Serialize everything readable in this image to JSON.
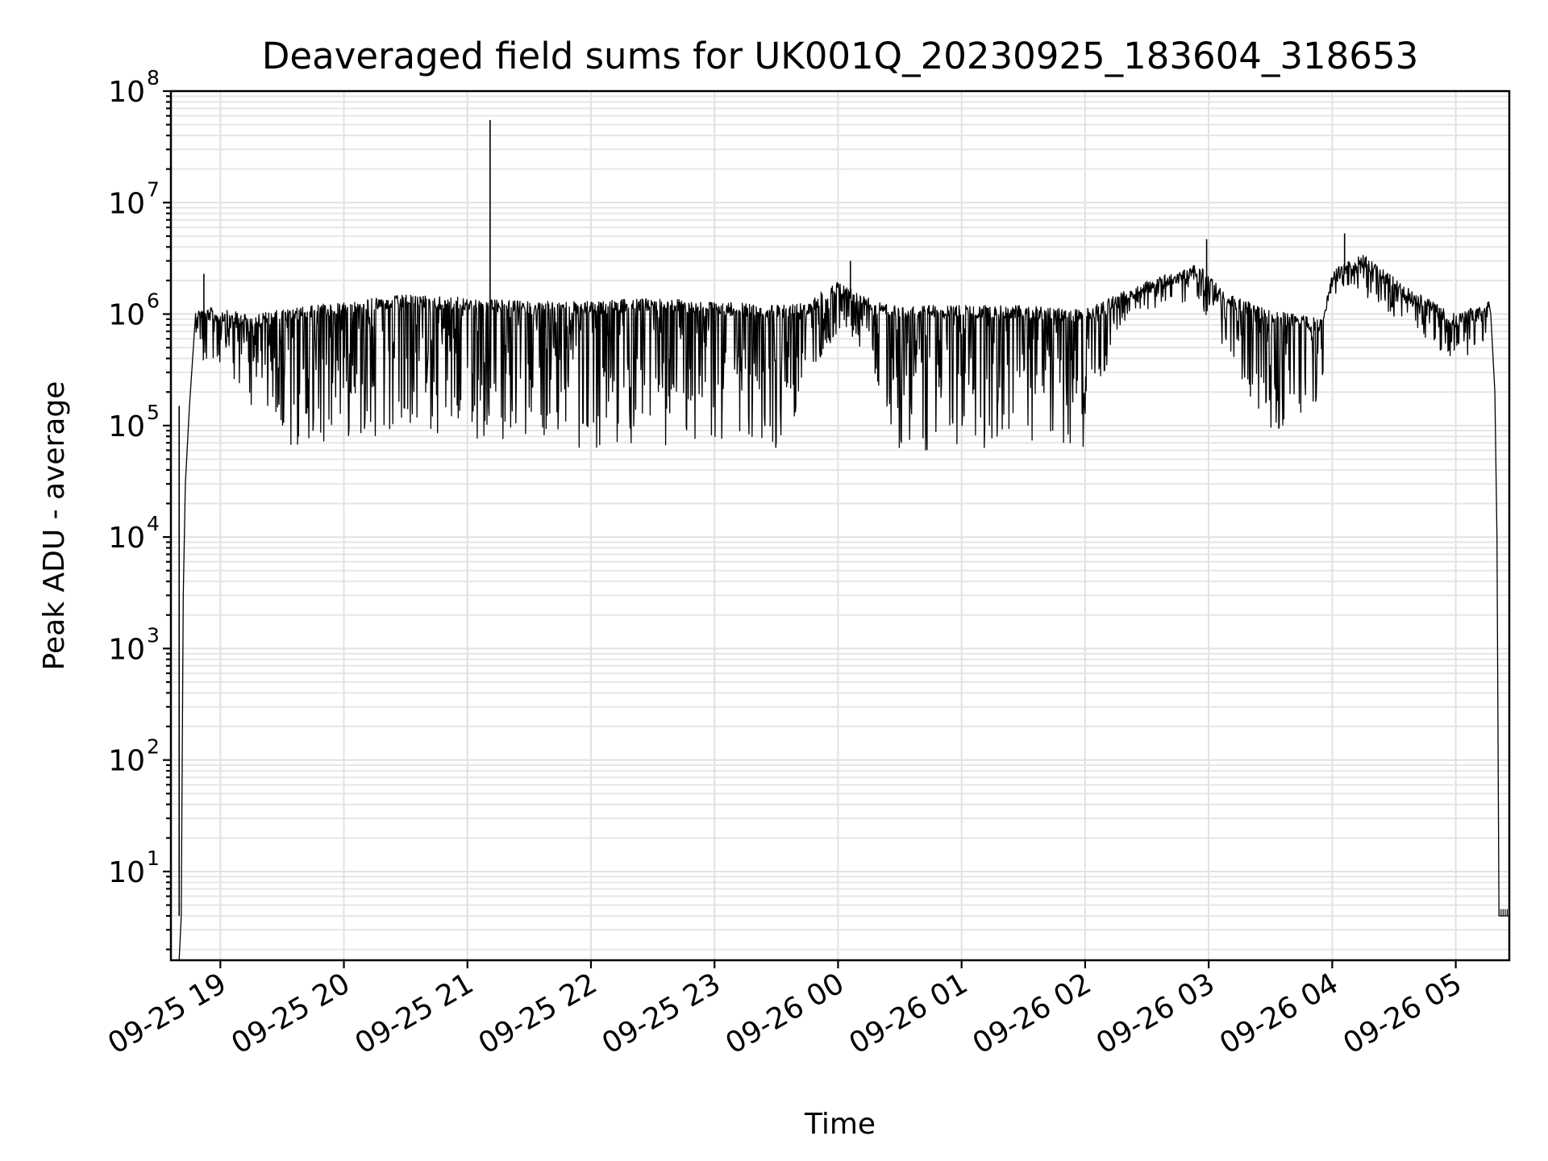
{
  "chart_data": {
    "type": "line",
    "title": "Deaveraged field sums for UK001Q_20230925_183604_318653",
    "xlabel": "Time",
    "ylabel": "Peak ADU - average",
    "yscale": "log",
    "ylim": [
      1.6,
      100000000
    ],
    "xlim": [
      "2023-09-25 18:36",
      "2023-09-26 05:26"
    ],
    "grid": "on (major and minor)",
    "legend": "none",
    "line_color": "#000000",
    "y_ticks": [
      {
        "value": 10,
        "base": "10",
        "exp": "1"
      },
      {
        "value": 100,
        "base": "10",
        "exp": "2"
      },
      {
        "value": 1000,
        "base": "10",
        "exp": "3"
      },
      {
        "value": 10000,
        "base": "10",
        "exp": "4"
      },
      {
        "value": 100000,
        "base": "10",
        "exp": "5"
      },
      {
        "value": 1000000,
        "base": "10",
        "exp": "6"
      },
      {
        "value": 10000000,
        "base": "10",
        "exp": "7"
      },
      {
        "value": 100000000,
        "base": "10",
        "exp": "8"
      }
    ],
    "x_ticks": [
      {
        "t": "2023-09-25 19:00",
        "label": "09-25 19"
      },
      {
        "t": "2023-09-25 20:00",
        "label": "09-25 20"
      },
      {
        "t": "2023-09-25 21:00",
        "label": "09-25 21"
      },
      {
        "t": "2023-09-25 22:00",
        "label": "09-25 22"
      },
      {
        "t": "2023-09-25 23:00",
        "label": "09-25 23"
      },
      {
        "t": "2023-09-26 00:00",
        "label": "09-26 00"
      },
      {
        "t": "2023-09-26 01:00",
        "label": "09-26 01"
      },
      {
        "t": "2023-09-26 02:00",
        "label": "09-26 02"
      },
      {
        "t": "2023-09-26 03:00",
        "label": "09-26 03"
      },
      {
        "t": "2023-09-26 04:00",
        "label": "09-26 04"
      },
      {
        "t": "2023-09-26 05:00",
        "label": "09-26 05"
      }
    ],
    "series": [
      {
        "envelope": [
          {
            "t": "2023-09-25 18:48",
            "high": 1200000,
            "low": 400000
          },
          {
            "t": "2023-09-25 19:15",
            "high": 1000000,
            "low": 150000
          },
          {
            "t": "2023-09-25 19:30",
            "high": 1100000,
            "low": 55000
          },
          {
            "t": "2023-09-25 20:00",
            "high": 1300000,
            "low": 80000
          },
          {
            "t": "2023-09-25 20:30",
            "high": 1500000,
            "low": 80000
          },
          {
            "t": "2023-09-25 21:00",
            "high": 1400000,
            "low": 70000
          },
          {
            "t": "2023-09-25 21:30",
            "high": 1300000,
            "low": 80000
          },
          {
            "t": "2023-09-25 22:00",
            "high": 1300000,
            "low": 60000
          },
          {
            "t": "2023-09-25 22:30",
            "high": 1400000,
            "low": 60000
          },
          {
            "t": "2023-09-25 23:00",
            "high": 1300000,
            "low": 70000
          },
          {
            "t": "2023-09-25 23:30",
            "high": 1200000,
            "low": 60000
          },
          {
            "t": "2023-09-25 23:45",
            "high": 1300000,
            "low": 200000
          },
          {
            "t": "2023-09-26 00:00",
            "high": 2000000,
            "low": 700000
          },
          {
            "t": "2023-09-26 00:15",
            "high": 1400000,
            "low": 400000
          },
          {
            "t": "2023-09-26 00:30",
            "high": 1200000,
            "low": 60000
          },
          {
            "t": "2023-09-26 01:00",
            "high": 1200000,
            "low": 60000
          },
          {
            "t": "2023-09-26 01:30",
            "high": 1200000,
            "low": 55000
          },
          {
            "t": "2023-09-26 02:00",
            "high": 1100000,
            "low": 60000
          },
          {
            "t": "2023-09-26 02:15",
            "high": 1500000,
            "low": 700000
          },
          {
            "t": "2023-09-26 02:30",
            "high": 2000000,
            "low": 1100000
          },
          {
            "t": "2023-09-26 02:55",
            "high": 2800000,
            "low": 1300000
          },
          {
            "t": "2023-09-26 03:10",
            "high": 1500000,
            "low": 400000
          },
          {
            "t": "2023-09-26 03:30",
            "high": 1100000,
            "low": 80000
          },
          {
            "t": "2023-09-26 03:55",
            "high": 900000,
            "low": 150000
          },
          {
            "t": "2023-09-26 04:00",
            "high": 2500000,
            "low": 1500000
          },
          {
            "t": "2023-09-26 04:15",
            "high": 3500000,
            "low": 1500000
          },
          {
            "t": "2023-09-26 04:35",
            "high": 1800000,
            "low": 800000
          },
          {
            "t": "2023-09-26 05:00",
            "high": 1000000,
            "low": 350000
          },
          {
            "t": "2023-09-26 05:16",
            "high": 1300000,
            "low": 600000
          }
        ],
        "ramp_up": [
          {
            "t": "2023-09-25 18:40",
            "y": 1.6
          },
          {
            "t": "2023-09-25 18:41",
            "y": 4
          },
          {
            "t": "2023-09-25 18:42",
            "y": 3000
          },
          {
            "t": "2023-09-25 18:43",
            "y": 30000
          },
          {
            "t": "2023-09-25 18:45",
            "y": 150000
          },
          {
            "t": "2023-09-25 18:48",
            "y": 1000000
          }
        ],
        "ramp_down": [
          {
            "t": "2023-09-26 05:17",
            "y": 1000000
          },
          {
            "t": "2023-09-26 05:19",
            "y": 200000
          },
          {
            "t": "2023-09-26 05:20",
            "y": 10000
          },
          {
            "t": "2023-09-26 05:21",
            "y": 4
          },
          {
            "t": "2023-09-26 05:26",
            "y": 4
          }
        ],
        "spikes": [
          {
            "t": "2023-09-25 18:40",
            "y": 150000
          },
          {
            "t": "2023-09-25 18:52",
            "y": 2300000
          },
          {
            "t": "2023-09-25 21:11",
            "y": 55000000
          },
          {
            "t": "2023-09-26 00:06",
            "y": 3000000
          },
          {
            "t": "2023-09-26 02:59",
            "y": 4700000
          },
          {
            "t": "2023-09-26 04:06",
            "y": 5300000
          }
        ]
      }
    ]
  }
}
